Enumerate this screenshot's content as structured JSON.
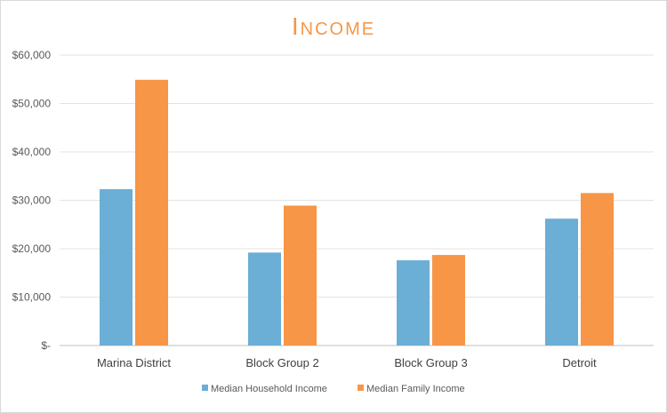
{
  "chart_data": {
    "type": "bar",
    "title": "Income",
    "categories": [
      "Marina District",
      "Block Group 2",
      "Block Group 3",
      "Detroit"
    ],
    "series": [
      {
        "name": "Median Household Income",
        "values": [
          32300,
          19200,
          17600,
          26200
        ],
        "color": "#6baed6"
      },
      {
        "name": "Median Family Income",
        "values": [
          54900,
          28900,
          18700,
          31500
        ],
        "color": "#f79646"
      }
    ],
    "ylim": [
      0,
      60000
    ],
    "yticks": [
      0,
      10000,
      20000,
      30000,
      40000,
      50000,
      60000
    ],
    "ytick_labels": [
      "$-",
      "$10,000",
      "$20,000",
      "$30,000",
      "$40,000",
      "$50,000",
      "$60,000"
    ],
    "xlabel": "",
    "ylabel": "",
    "grid": true,
    "legend_position": "bottom"
  }
}
